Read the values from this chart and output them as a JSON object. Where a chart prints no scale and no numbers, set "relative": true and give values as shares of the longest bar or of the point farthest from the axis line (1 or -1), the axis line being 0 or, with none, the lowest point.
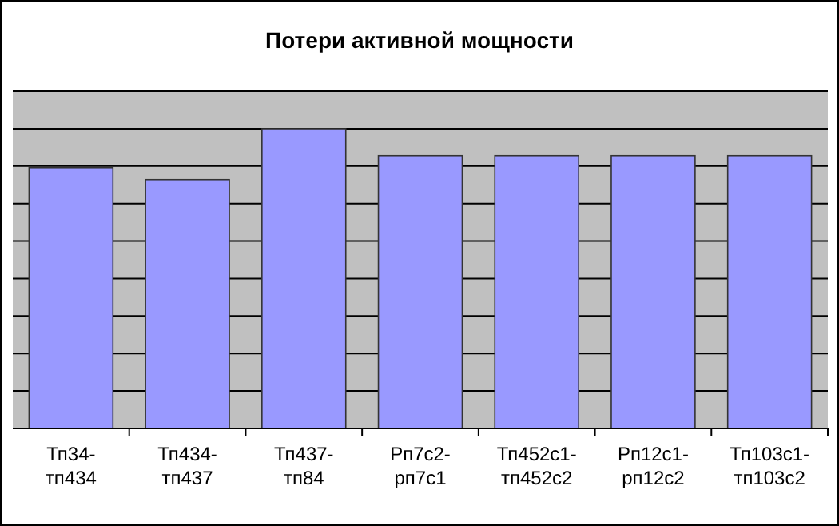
{
  "chart_data": {
    "type": "bar",
    "title": "Потери активной мощности",
    "categories": [
      "Тп34-тп434",
      "Тп434-тп437",
      "Тп437-тп84",
      "Рп7с2-рп7с1",
      "Тп452с1-тп452с2",
      "Рп12с1-рп12с2",
      "Тп103с1-тп103с2"
    ],
    "series": [
      {
        "color": "#9999ff",
        "values": [
          0.87,
          0.83,
          1,
          0.91,
          0.91,
          0.91,
          0.91
        ]
      }
    ],
    "relative": true,
    "grid": "y"
  }
}
